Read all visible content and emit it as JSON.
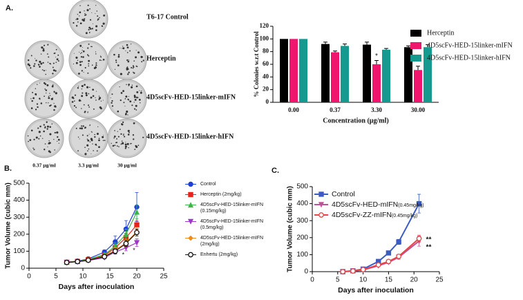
{
  "panel_labels": [
    "A.",
    "B.",
    "C."
  ],
  "colony_panel": {
    "control_label": "T6-17 Control",
    "row_labels": [
      "Herceptin",
      "4D5scFv-HED-15linker-mIFN",
      "4D5scFv-HED-15linker-hIFN"
    ],
    "column_labels": [
      "0.37 μg/ml",
      "3.3 μg/ml",
      "30 μg/ml"
    ]
  },
  "chart_data": [
    {
      "type": "bar",
      "ylabel": "% Colonies w.r.t Control",
      "xlabel": "Concentration (μg/ml)",
      "categories": [
        "0.00",
        "0.37",
        "3.30",
        "30.00"
      ],
      "ylim": [
        0,
        120
      ],
      "yticks": [
        0,
        20,
        40,
        60,
        80,
        100,
        120
      ],
      "series": [
        {
          "name": "Herceptin",
          "color": "#000000",
          "values": [
            100,
            92,
            91,
            87
          ],
          "errors": [
            0,
            3,
            4,
            2
          ]
        },
        {
          "name": "4D5scFv-HED-15linker-mIFN",
          "color": "#f0166e",
          "values": [
            100,
            79,
            60,
            51
          ],
          "errors": [
            0,
            2,
            6,
            6
          ]
        },
        {
          "name": "4D5scFv-HED-15linker-hIFN",
          "color": "#169a8f",
          "values": [
            100,
            89,
            83,
            87
          ],
          "errors": [
            0,
            3,
            2,
            4
          ]
        }
      ],
      "annotations": [
        "*",
        "*"
      ]
    },
    {
      "type": "line",
      "ylabel": "Tumor Volume (cubic mm)",
      "xlabel": "Days after inoculation",
      "xlim": [
        0,
        25
      ],
      "xticks": [
        0,
        5,
        10,
        15,
        20,
        25
      ],
      "ylim": [
        0,
        500
      ],
      "yticks": [
        0,
        100,
        200,
        300,
        400,
        500
      ],
      "series": [
        {
          "name": "Control",
          "color": "#1f3fd6",
          "marker": "circle",
          "x": [
            7,
            9,
            11,
            14,
            16,
            18,
            20
          ],
          "values": [
            35,
            42,
            55,
            95,
            155,
            230,
            360
          ],
          "errors": [
            5,
            5,
            8,
            12,
            35,
            50,
            85
          ]
        },
        {
          "name": "Herceptin (2mg/kg)",
          "color": "#e8231c",
          "marker": "square",
          "x": [
            7,
            9,
            11,
            14,
            16,
            18,
            20
          ],
          "values": [
            35,
            40,
            50,
            75,
            120,
            180,
            255
          ],
          "errors": [
            4,
            5,
            6,
            10,
            18,
            25,
            25
          ]
        },
        {
          "name": "4D5scFv-HED-15linker-mIFN (0.15mg/kg)",
          "color": "#3bb54a",
          "marker": "triangle",
          "x": [
            7,
            9,
            11,
            14,
            16,
            18,
            20
          ],
          "values": [
            35,
            40,
            52,
            80,
            130,
            200,
            330
          ],
          "errors": [
            4,
            5,
            6,
            10,
            20,
            30,
            40
          ]
        },
        {
          "name": "4D5scFv-HED-15linker-mIFN (0.5mg/kg)",
          "color": "#a035c8",
          "marker": "triangle-down",
          "x": [
            7,
            9,
            11,
            14,
            16,
            18,
            20
          ],
          "values": [
            33,
            38,
            45,
            62,
            95,
            120,
            150
          ],
          "errors": [
            4,
            4,
            5,
            8,
            12,
            18,
            22
          ]
        },
        {
          "name": "4D5scFv-HED-15linker-mIFN (2mg/kg)",
          "color": "#f08c1c",
          "marker": "diamond",
          "x": [
            7,
            9,
            11,
            14,
            16,
            18,
            20
          ],
          "values": [
            34,
            39,
            48,
            70,
            105,
            150,
            215
          ],
          "errors": [
            4,
            5,
            6,
            9,
            15,
            20,
            25
          ]
        },
        {
          "name": "Enhertu (2mg/kg)",
          "color": "#111111",
          "marker": "open-circle",
          "x": [
            7,
            9,
            11,
            14,
            16,
            18,
            20
          ],
          "values": [
            34,
            39,
            47,
            68,
            100,
            145,
            210
          ],
          "errors": [
            4,
            5,
            6,
            9,
            14,
            18,
            20
          ]
        }
      ],
      "annotations": [
        "*",
        "*"
      ]
    },
    {
      "type": "line",
      "ylabel": "Tumor Volume (cubic mm)",
      "xlabel": "Days after inoculation",
      "xlim": [
        0,
        25
      ],
      "xticks": [
        0,
        5,
        10,
        15,
        20,
        25
      ],
      "ylim": [
        0,
        500
      ],
      "yticks": [
        0,
        100,
        200,
        300,
        400,
        500
      ],
      "series": [
        {
          "name": "Control",
          "color": "#3b5bc4",
          "marker": "square",
          "x": [
            6,
            8,
            10,
            13,
            15,
            17,
            21
          ],
          "values": [
            0,
            5,
            15,
            60,
            110,
            175,
            400
          ],
          "errors": [
            2,
            3,
            4,
            6,
            10,
            15,
            55
          ]
        },
        {
          "name": "4D5scFv-HED-mIFN",
          "dose": "(0.45mg/kg)",
          "color": "#c0509a",
          "marker": "triangle-down",
          "x": [
            6,
            8,
            10,
            13,
            15,
            17,
            21
          ],
          "values": [
            0,
            3,
            10,
            35,
            55,
            85,
            180
          ],
          "errors": [
            2,
            2,
            3,
            5,
            8,
            12,
            30
          ]
        },
        {
          "name": "4D5scFv-ZZ-mIFN",
          "dose": "(0.45mg/kg)",
          "color": "#e84545",
          "marker": "open-circle",
          "x": [
            6,
            8,
            10,
            13,
            15,
            17,
            21
          ],
          "values": [
            0,
            4,
            12,
            40,
            60,
            90,
            195
          ],
          "errors": [
            2,
            2,
            3,
            5,
            8,
            12,
            20
          ]
        }
      ],
      "annotations": [
        "**",
        "**"
      ]
    }
  ]
}
